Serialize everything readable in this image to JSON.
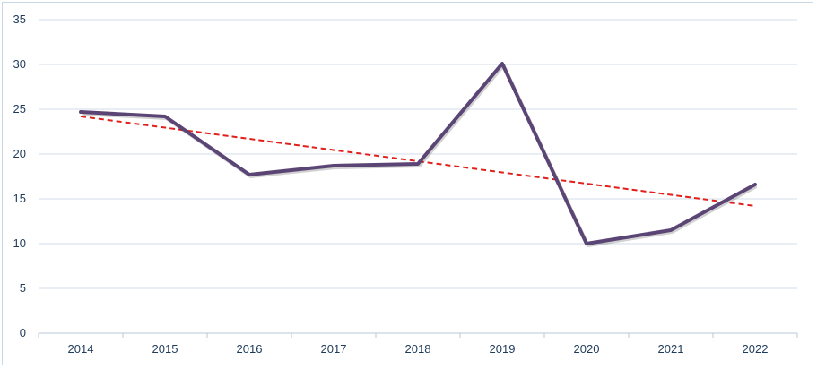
{
  "chart_data": {
    "type": "line",
    "title": "",
    "xlabel": "",
    "ylabel": "",
    "categories": [
      "2014",
      "2015",
      "2016",
      "2017",
      "2018",
      "2019",
      "2020",
      "2021",
      "2022"
    ],
    "series": [
      {
        "values": [
          24.7,
          24.2,
          17.7,
          18.7,
          18.9,
          30.1,
          10.0,
          11.5,
          16.6
        ],
        "color": "#5b4575"
      }
    ],
    "trendline": {
      "style": "dashed",
      "color": "#e0201b",
      "start": 24.2,
      "end": 14.2
    },
    "y_ticks": [
      "0",
      "5",
      "10",
      "15",
      "20",
      "25",
      "30",
      "35"
    ],
    "ylim": [
      0,
      35
    ],
    "grid": true,
    "legend": "none"
  }
}
